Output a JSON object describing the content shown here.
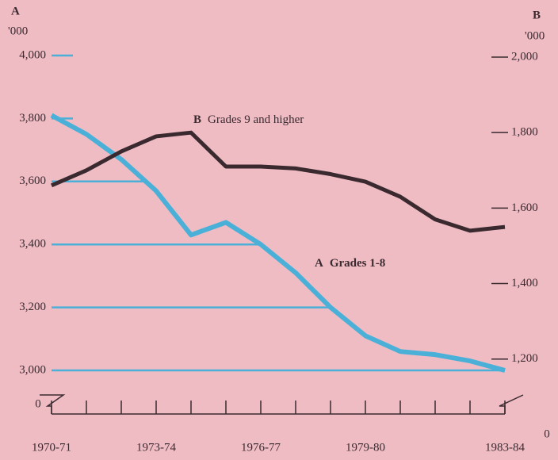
{
  "chart_data": {
    "type": "line",
    "ylabel": "A",
    "ylabel_unit": "'000",
    "y2label": "B",
    "y2label_unit": "'000",
    "categories": [
      "1970-71",
      null,
      null,
      "1973-74",
      null,
      null,
      "1976-77",
      null,
      null,
      "1979-80",
      null,
      null,
      null,
      "1983-84"
    ],
    "series": [
      {
        "name": "Grades 1-8",
        "color": "#4bb0d8",
        "axis": "y",
        "values": [
          3810,
          3750,
          3670,
          3570,
          3430,
          3470,
          3400,
          3310,
          3200,
          3110,
          3060,
          3050,
          3030,
          3000
        ]
      },
      {
        "name": "Grades 9 and higher",
        "color": "#3a2a30",
        "axis": "y2",
        "values": [
          1660,
          1700,
          1750,
          1790,
          1800,
          1710,
          1710,
          1705,
          1690,
          1670,
          1630,
          1570,
          1540,
          1550
        ]
      }
    ],
    "ylim": [
      3000,
      4000
    ],
    "yticks": [
      {
        "value": 3000,
        "label": "3,000"
      },
      {
        "value": 3200,
        "label": "3,200"
      },
      {
        "value": 3400,
        "label": "3,400"
      },
      {
        "value": 3600,
        "label": "3,600"
      },
      {
        "value": 3800,
        "label": "3,800"
      },
      {
        "value": 4000,
        "label": "4,000"
      }
    ],
    "y2lim": [
      1170,
      2000
    ],
    "y2ticks": [
      {
        "value": 1200,
        "label": "1,200"
      },
      {
        "value": 1400,
        "label": "1,400"
      },
      {
        "value": 1600,
        "label": "1,600"
      },
      {
        "value": 1800,
        "label": "1,800"
      },
      {
        "value": 2000,
        "label": "2,000"
      }
    ],
    "ybreak_label": "0",
    "y2break_label": "0"
  }
}
